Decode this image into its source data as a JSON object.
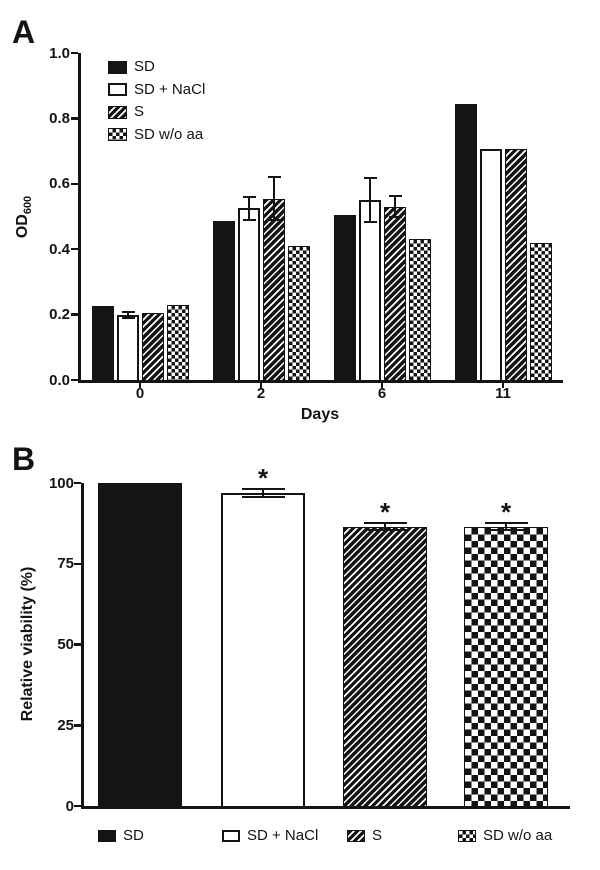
{
  "figure": {
    "background": "#ffffff",
    "ink": "#141414",
    "panels": [
      {
        "label": "A"
      },
      {
        "label": "B"
      }
    ]
  },
  "chart_data": [
    {
      "type": "bar",
      "panel": "A",
      "title": "",
      "xlabel": "Days",
      "ylabel": "OD600",
      "ylabel_base": "OD",
      "ylabel_sub": "600",
      "ylim": [
        0,
        1.0
      ],
      "yticks": [
        "0.0",
        "0.2",
        "0.4",
        "0.6",
        "0.8",
        "1.0"
      ],
      "grid": false,
      "legend_position": "inside-top-left",
      "categories": [
        "0",
        "2",
        "6",
        "11"
      ],
      "series": [
        {
          "name": "SD",
          "pattern": "solid",
          "values": [
            0.225,
            0.485,
            0.505,
            0.845
          ],
          "errors": [
            0,
            0,
            0,
            0
          ]
        },
        {
          "name": "SD + NaCl",
          "pattern": "open",
          "values": [
            0.2,
            0.525,
            0.55,
            0.705
          ],
          "errors": [
            0.012,
            0.038,
            0.07,
            0
          ]
        },
        {
          "name": "S",
          "pattern": "hatch",
          "values": [
            0.205,
            0.555,
            0.53,
            0.705
          ],
          "errors": [
            0,
            0.07,
            0.036,
            0
          ]
        },
        {
          "name": "SD w/o aa",
          "pattern": "checker",
          "values": [
            0.23,
            0.41,
            0.43,
            0.42
          ],
          "errors": [
            0,
            0,
            0,
            0
          ]
        }
      ]
    },
    {
      "type": "bar",
      "panel": "B",
      "title": "",
      "xlabel": "",
      "ylabel": "Relative viability (%)",
      "ylim": [
        0,
        100
      ],
      "yticks": [
        "0",
        "25",
        "50",
        "75",
        "100"
      ],
      "grid": false,
      "legend_position": "below",
      "categories": [
        "SD",
        "SD + NaCl",
        "S",
        "SD w/o aa"
      ],
      "patterns": [
        "solid",
        "open",
        "hatch",
        "checker"
      ],
      "series": [
        {
          "name": "Relative viability",
          "values": [
            100,
            96.8,
            86.5,
            86.5
          ],
          "errors": [
            0,
            1.5,
            1.5,
            1.5
          ],
          "annotations": [
            "",
            "*",
            "*",
            "*"
          ]
        }
      ]
    }
  ]
}
